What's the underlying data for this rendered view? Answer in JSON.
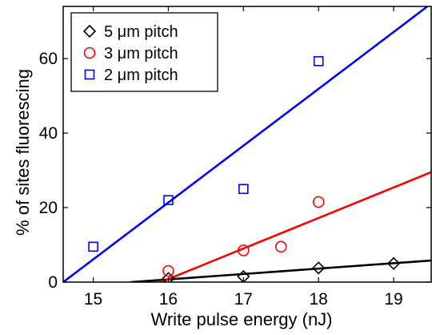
{
  "chart_data": {
    "type": "scatter",
    "xlabel": "Write pulse energy (nJ)",
    "ylabel": "% of sites fluorescing",
    "xlim": [
      14.6,
      19.5
    ],
    "ylim": [
      0,
      74
    ],
    "xticks": [
      15,
      16,
      17,
      18,
      19
    ],
    "yticks": [
      0,
      20,
      40,
      60
    ],
    "grid": false,
    "legend_position": "top-left",
    "series": [
      {
        "name": "5 μm pitch",
        "marker": "diamond",
        "color": "#000000",
        "points": [
          [
            16,
            1.0
          ],
          [
            17,
            1.5
          ],
          [
            18,
            3.8
          ],
          [
            19,
            5.0
          ]
        ],
        "fit_line": [
          [
            15.5,
            0
          ],
          [
            19.5,
            5.8
          ]
        ]
      },
      {
        "name": "3 μm pitch",
        "marker": "circle",
        "color": "#ff0000",
        "points": [
          [
            16,
            3.0
          ],
          [
            17,
            8.5
          ],
          [
            17.5,
            9.5
          ],
          [
            18,
            21.5
          ]
        ],
        "fit_line": [
          [
            15.9,
            0
          ],
          [
            19.5,
            29.5
          ]
        ]
      },
      {
        "name": "2 μm pitch",
        "marker": "square",
        "color": "#0000ff",
        "points": [
          [
            15,
            9.5
          ],
          [
            16,
            22.0
          ],
          [
            17,
            25.0
          ],
          [
            18,
            59.3
          ]
        ],
        "fit_line": [
          [
            14.6,
            0
          ],
          [
            19.45,
            74
          ]
        ]
      }
    ]
  }
}
